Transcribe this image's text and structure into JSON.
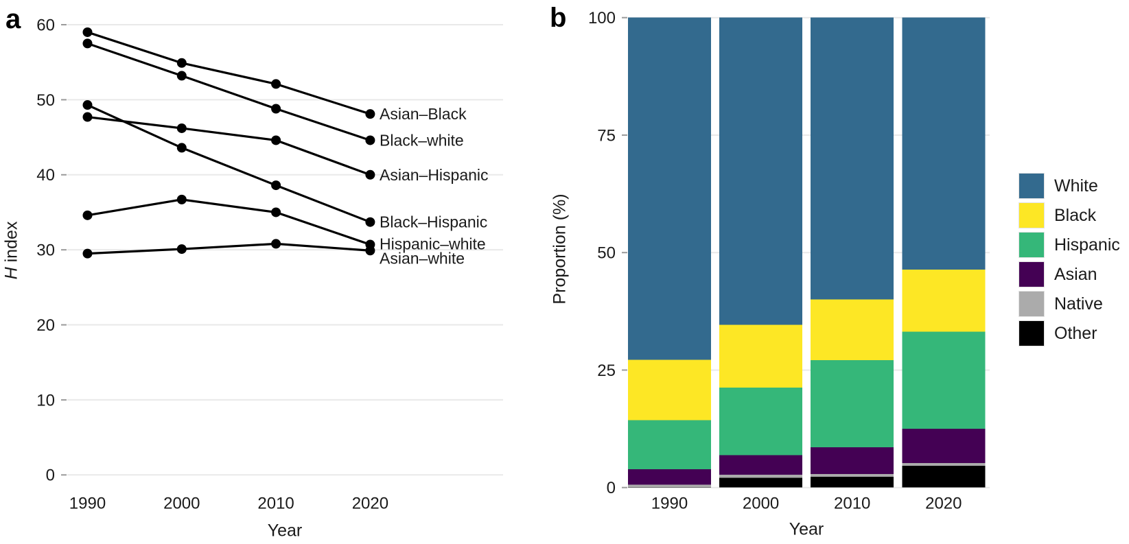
{
  "panels": {
    "a": {
      "letter": "a",
      "x_axis_title": "Year",
      "y_axis_title_italic": "H",
      "y_axis_title_rest": " index"
    },
    "b": {
      "letter": "b",
      "x_axis_title": "Year",
      "y_axis_title": "Proportion (%)"
    }
  },
  "colors": {
    "line": "#000000",
    "gridline": "#e9e9e9",
    "tick_dash": "#9a9a9a",
    "text": "#1a1a1a",
    "background": "#ffffff"
  },
  "chart_data": [
    {
      "type": "line",
      "panel": "a",
      "title": "",
      "xlabel": "Year",
      "ylabel": "H index",
      "x": [
        1990,
        2000,
        2010,
        2020
      ],
      "xtick_labels": [
        "1990",
        "2000",
        "2010",
        "2020"
      ],
      "yticks": [
        0,
        10,
        20,
        30,
        40,
        50,
        60
      ],
      "ylim": [
        0,
        60
      ],
      "grid": "horizontal",
      "legend_position": "end-of-line-labels",
      "marker": "circle",
      "series": [
        {
          "name": "Asian–Black",
          "values": [
            59.0,
            54.9,
            52.1,
            48.1
          ]
        },
        {
          "name": "Black–white",
          "values": [
            57.5,
            53.2,
            48.8,
            44.6
          ]
        },
        {
          "name": "Asian–Hispanic",
          "values": [
            47.7,
            46.2,
            44.6,
            40.0
          ]
        },
        {
          "name": "Black–Hispanic",
          "values": [
            49.3,
            43.6,
            38.6,
            33.7
          ]
        },
        {
          "name": "Hispanic–white",
          "values": [
            34.6,
            36.7,
            35.0,
            30.7
          ]
        },
        {
          "name": "Asian–white",
          "values": [
            29.5,
            30.1,
            30.8,
            29.9
          ]
        }
      ]
    },
    {
      "type": "bar",
      "panel": "b",
      "stacked": true,
      "title": "",
      "xlabel": "Year",
      "ylabel": "Proportion (%)",
      "categories": [
        "1990",
        "2000",
        "2010",
        "2020"
      ],
      "yticks": [
        0,
        25,
        50,
        75,
        100
      ],
      "ylim": [
        0,
        100
      ],
      "grid": "horizontal",
      "legend": [
        "White",
        "Black",
        "Hispanic",
        "Asian",
        "Native",
        "Other"
      ],
      "legend_position": "right",
      "series": [
        {
          "name": "Other",
          "color": "#000000",
          "values": [
            0.1,
            2.1,
            2.3,
            4.6
          ]
        },
        {
          "name": "Native",
          "color": "#ababab",
          "values": [
            0.5,
            0.6,
            0.6,
            0.6
          ]
        },
        {
          "name": "Asian",
          "color": "#440154",
          "values": [
            3.3,
            4.2,
            5.7,
            7.3
          ]
        },
        {
          "name": "Hispanic",
          "color": "#35b779",
          "values": [
            10.4,
            14.4,
            18.5,
            20.7
          ]
        },
        {
          "name": "Black",
          "color": "#fde725",
          "values": [
            12.9,
            13.3,
            12.9,
            13.2
          ]
        },
        {
          "name": "White",
          "color": "#336a8e",
          "values": [
            72.8,
            65.4,
            60.0,
            53.6
          ]
        }
      ]
    }
  ]
}
